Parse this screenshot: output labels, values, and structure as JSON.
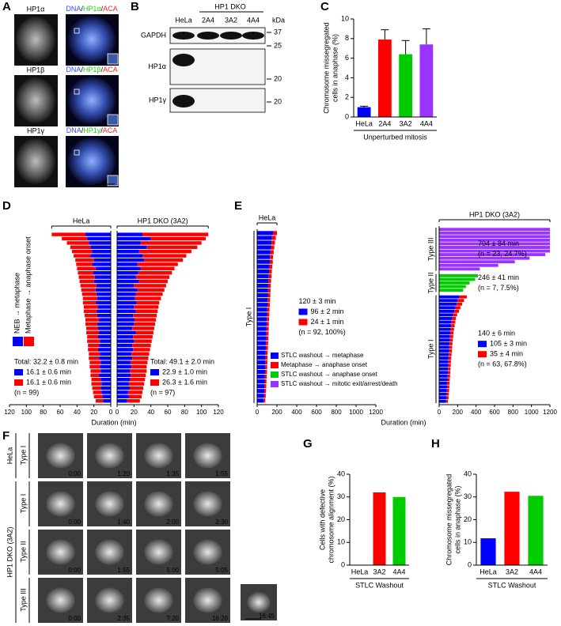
{
  "panel_a": {
    "letter": "A",
    "rows": [
      {
        "label": {
          "text": "HP1α",
          "color": "#22cc22"
        },
        "merge": [
          {
            "text": "DNA",
            "color": "#2f4bff"
          },
          {
            "text": "/",
            "color": "#000000"
          },
          {
            "text": "HP1α",
            "color": "#22cc22"
          },
          {
            "text": "/",
            "color": "#000000"
          },
          {
            "text": "ACA",
            "color": "#ff2020"
          }
        ]
      },
      {
        "label": {
          "text": "HP1β",
          "color": "#22cc22"
        },
        "merge": [
          {
            "text": "DNA",
            "color": "#2f4bff"
          },
          {
            "text": "/",
            "color": "#000000"
          },
          {
            "text": "HP1β",
            "color": "#22cc22"
          },
          {
            "text": "/",
            "color": "#000000"
          },
          {
            "text": "ACA",
            "color": "#ff2020"
          }
        ]
      },
      {
        "label": {
          "text": "HP1γ",
          "color": "#22cc22"
        },
        "merge": [
          {
            "text": "DNA",
            "color": "#2f4bff"
          },
          {
            "text": "/",
            "color": "#000000"
          },
          {
            "text": "HP1γ",
            "color": "#22cc22"
          },
          {
            "text": "/",
            "color": "#000000"
          },
          {
            "text": "ACA",
            "color": "#ff2020"
          }
        ]
      }
    ]
  },
  "panel_b": {
    "letter": "B",
    "group": "HP1 DKO",
    "lanes": [
      "HeLa",
      "2A4",
      "3A2",
      "4A4"
    ],
    "unit": "kDa",
    "blots": [
      "GAPDH",
      "HP1α",
      "HP1γ"
    ],
    "markers": [
      37,
      25,
      20,
      20
    ]
  },
  "panel_f": {
    "letter": "F",
    "row_groups": [
      {
        "label": "HeLa",
        "rows": [
          {
            "label": "Type I",
            "times": [
              "0:00",
              "1:20",
              "1:35",
              "1:55"
            ]
          }
        ]
      },
      {
        "label": "HP1 DKO (3A2)",
        "rows": [
          {
            "label": "Type I",
            "times": [
              "0:00",
              "1:40",
              "2:00",
              "2:30"
            ]
          },
          {
            "label": "Type II",
            "times": [
              "0:00",
              "1:55",
              "5:00",
              "5:05"
            ]
          },
          {
            "label": "Type III",
            "times": [
              "0:00",
              "2:35",
              "7:20",
              "16:20",
              "16:45"
            ]
          }
        ]
      }
    ]
  },
  "chart_data": [
    {
      "type": "bar",
      "panel": "C",
      "ylabel": [
        "Chromosome missegregated",
        "cells in anaphase (%)"
      ],
      "categories": [
        "HeLa",
        "2A4",
        "3A2",
        "4A4"
      ],
      "values": [
        1.0,
        7.9,
        6.4,
        7.4
      ],
      "errors": [
        0.1,
        1.0,
        1.4,
        1.6
      ],
      "colors": [
        "#0000ff",
        "#ff0000",
        "#00cc00",
        "#9933ff"
      ],
      "ylim": [
        0,
        10
      ],
      "yticks": [
        0,
        2,
        4,
        6,
        8,
        10
      ],
      "xlabel": "Unperturbed mitosis"
    },
    {
      "type": "barh",
      "panel": "D",
      "title": "HeLa",
      "reversed": true,
      "series": [
        {
          "name": "NEB → metaphase",
          "color": "#0000ff",
          "values": [
            30,
            28,
            26,
            24,
            22,
            24,
            20,
            22,
            18,
            21,
            19,
            20,
            17,
            18,
            17,
            16,
            18,
            15,
            17,
            16,
            14,
            16,
            15,
            14,
            15,
            13,
            14,
            15,
            13,
            14,
            12,
            13,
            12,
            14,
            12,
            11,
            12,
            11,
            10,
            9
          ]
        },
        {
          "name": "Metaphase → anaphase onset",
          "color": "#ff0000",
          "values": [
            40,
            30,
            26,
            24,
            24,
            20,
            22,
            19,
            22,
            18,
            19,
            17,
            19,
            17,
            17,
            17,
            15,
            17,
            15,
            15,
            16,
            14,
            14,
            15,
            13,
            15,
            13,
            12,
            13,
            12,
            13,
            12,
            12,
            10,
            11,
            12,
            10,
            10,
            10,
            9
          ]
        }
      ],
      "xlim": [
        0,
        120
      ],
      "xticks": [
        0,
        20,
        40,
        60,
        80,
        100,
        120
      ],
      "xlabel": "Duration (min)",
      "stats": [
        {
          "text": "Total: 32.2 ± 0.8 min"
        },
        {
          "text": "16.1 ± 0.6 min",
          "color": "#0000ff"
        },
        {
          "text": "16.1 ± 0.6 min",
          "color": "#ff0000"
        },
        {
          "text": "(n = 99)"
        }
      ]
    },
    {
      "type": "barh",
      "title": "HP1 DKO (3A2)",
      "reversed": false,
      "series": [
        {
          "color": "#0000ff",
          "values": [
            30,
            40,
            28,
            35,
            26,
            30,
            32,
            24,
            28,
            25,
            22,
            26,
            20,
            24,
            22,
            21,
            23,
            20,
            22,
            19,
            21,
            20,
            18,
            22,
            19,
            20,
            18,
            19,
            17,
            18,
            16,
            17,
            15,
            16,
            15,
            14,
            15,
            13,
            14,
            12
          ]
        },
        {
          "color": "#ff0000",
          "values": [
            78,
            65,
            72,
            60,
            62,
            52,
            46,
            48,
            40,
            40,
            40,
            34,
            38,
            32,
            32,
            31,
            27,
            29,
            26,
            28,
            25,
            25,
            26,
            21,
            23,
            21,
            22,
            20,
            21,
            19,
            20,
            18,
            20,
            18,
            18,
            18,
            16,
            17,
            15,
            15
          ]
        }
      ],
      "xlim": [
        0,
        120
      ],
      "xticks": [
        0,
        20,
        40,
        60,
        80,
        100,
        120
      ],
      "stats": [
        {
          "text": "Total: 49.1 ± 2.0 min"
        },
        {
          "text": "22.9 ± 1.0 min",
          "color": "#0000ff"
        },
        {
          "text": "26.3 ± 1.6 min",
          "color": "#ff0000"
        },
        {
          "text": "(n = 97)"
        }
      ]
    },
    {
      "type": "timeline",
      "panel": "E",
      "title": "HeLa",
      "xlim": [
        0,
        1200
      ],
      "xticks": [
        0,
        200,
        400,
        600,
        800,
        1000,
        1200
      ],
      "xlabel": "Duration (min)",
      "groups": [
        {
          "label": "Type I",
          "series": [
            {
              "color": "#0000ff",
              "values": [
                160,
                150,
                145,
                140,
                135,
                130,
                128,
                125,
                120,
                118,
                115,
                112,
                110,
                108,
                106,
                104,
                102,
                100,
                98,
                96,
                95,
                93,
                92,
                90,
                88,
                86,
                85,
                83,
                82,
                80,
                78,
                76,
                74,
                72,
                70,
                66
              ]
            },
            {
              "color": "#ff0000",
              "values": [
                40,
                38,
                35,
                33,
                32,
                30,
                30,
                28,
                28,
                27,
                26,
                26,
                25,
                25,
                24,
                24,
                23,
                23,
                23,
                22,
                22,
                22,
                21,
                21,
                21,
                20,
                20,
                20,
                19,
                19,
                19,
                18,
                18,
                18,
                17,
                16
              ]
            }
          ],
          "stats": [
            {
              "text": "120 ± 3 min"
            },
            {
              "text": "96 ± 2 min",
              "color": "#0000ff"
            },
            {
              "text": "24 ± 1 min",
              "color": "#ff0000"
            },
            {
              "text": "(n = 92, 100%)"
            }
          ]
        }
      ]
    },
    {
      "type": "timeline",
      "title": "HP1 DKO (3A2)",
      "xlim": [
        0,
        1200
      ],
      "xticks": [
        0,
        200,
        400,
        600,
        800,
        1000,
        1200
      ],
      "groups": [
        {
          "label": "Type III",
          "series": [
            {
              "name": "STLC washout → mitotic exit/arrest/death",
              "color": "#9933ff",
              "values": [
                1200,
                1200,
                1200,
                1200,
                1200,
                1200,
                1200,
                1150,
                980,
                820,
                640,
                440
              ]
            }
          ],
          "stats": [
            {
              "text": "704 ± 84 min"
            },
            {
              "text": "(n = 23, 24.7%)"
            }
          ]
        },
        {
          "label": "Type II",
          "series": [
            {
              "name": "STLC washout → anaphase onset",
              "color": "#00cc00",
              "values": [
                420,
                390,
                330,
                290,
                260
              ]
            }
          ],
          "stats": [
            {
              "text": "246 ± 41 min"
            },
            {
              "text": "(n = 7, 7.5%)"
            }
          ]
        },
        {
          "label": "Type I",
          "series": [
            {
              "name": "STLC washout → metaphase",
              "color": "#0000ff",
              "values": [
                220,
                200,
                190,
                175,
                165,
                150,
                140,
                135,
                130,
                125,
                120,
                118,
                115,
                112,
                110,
                108,
                105,
                102,
                100,
                98,
                96,
                94,
                92,
                90,
                88,
                86,
                84,
                82,
                80,
                76
              ]
            },
            {
              "name": "Metaphase → anaphase onset",
              "color": "#ff0000",
              "values": [
                80,
                70,
                60,
                55,
                50,
                45,
                42,
                40,
                38,
                36,
                35,
                34,
                33,
                32,
                31,
                30,
                30,
                29,
                28,
                28,
                27,
                26,
                26,
                25,
                25,
                24,
                24,
                23,
                22,
                20
              ]
            }
          ],
          "stats": [
            {
              "text": "140 ± 6 min"
            },
            {
              "text": "105 ± 3 min",
              "color": "#0000ff"
            },
            {
              "text": "35 ± 4 min",
              "color": "#ff0000"
            },
            {
              "text": "(n = 63, 67.8%)"
            }
          ]
        }
      ]
    },
    {
      "type": "bar",
      "panel": "G",
      "ylabel": [
        "Cells with defective",
        "chromosome alignment (%)"
      ],
      "categories": [
        "HeLa",
        "3A2",
        "4A4"
      ],
      "values": [
        0,
        32,
        30
      ],
      "colors": [
        "#0000ff",
        "#ff0000",
        "#00cc00"
      ],
      "ylim": [
        0,
        40
      ],
      "yticks": [
        0,
        10,
        20,
        30,
        40
      ],
      "xlabel": "STLC Washout"
    },
    {
      "type": "bar",
      "panel": "H",
      "ylabel": [
        "Chromosome missegregated",
        "cells in anaphase (%)"
      ],
      "categories": [
        "HeLa",
        "3A2",
        "4A4"
      ],
      "values": [
        11.8,
        32.3,
        30.5
      ],
      "colors": [
        "#0000ff",
        "#ff0000",
        "#00cc00"
      ],
      "ylim": [
        0,
        40
      ],
      "yticks": [
        0,
        10,
        20,
        30,
        40
      ],
      "xlabel": "STLC Washout"
    }
  ]
}
